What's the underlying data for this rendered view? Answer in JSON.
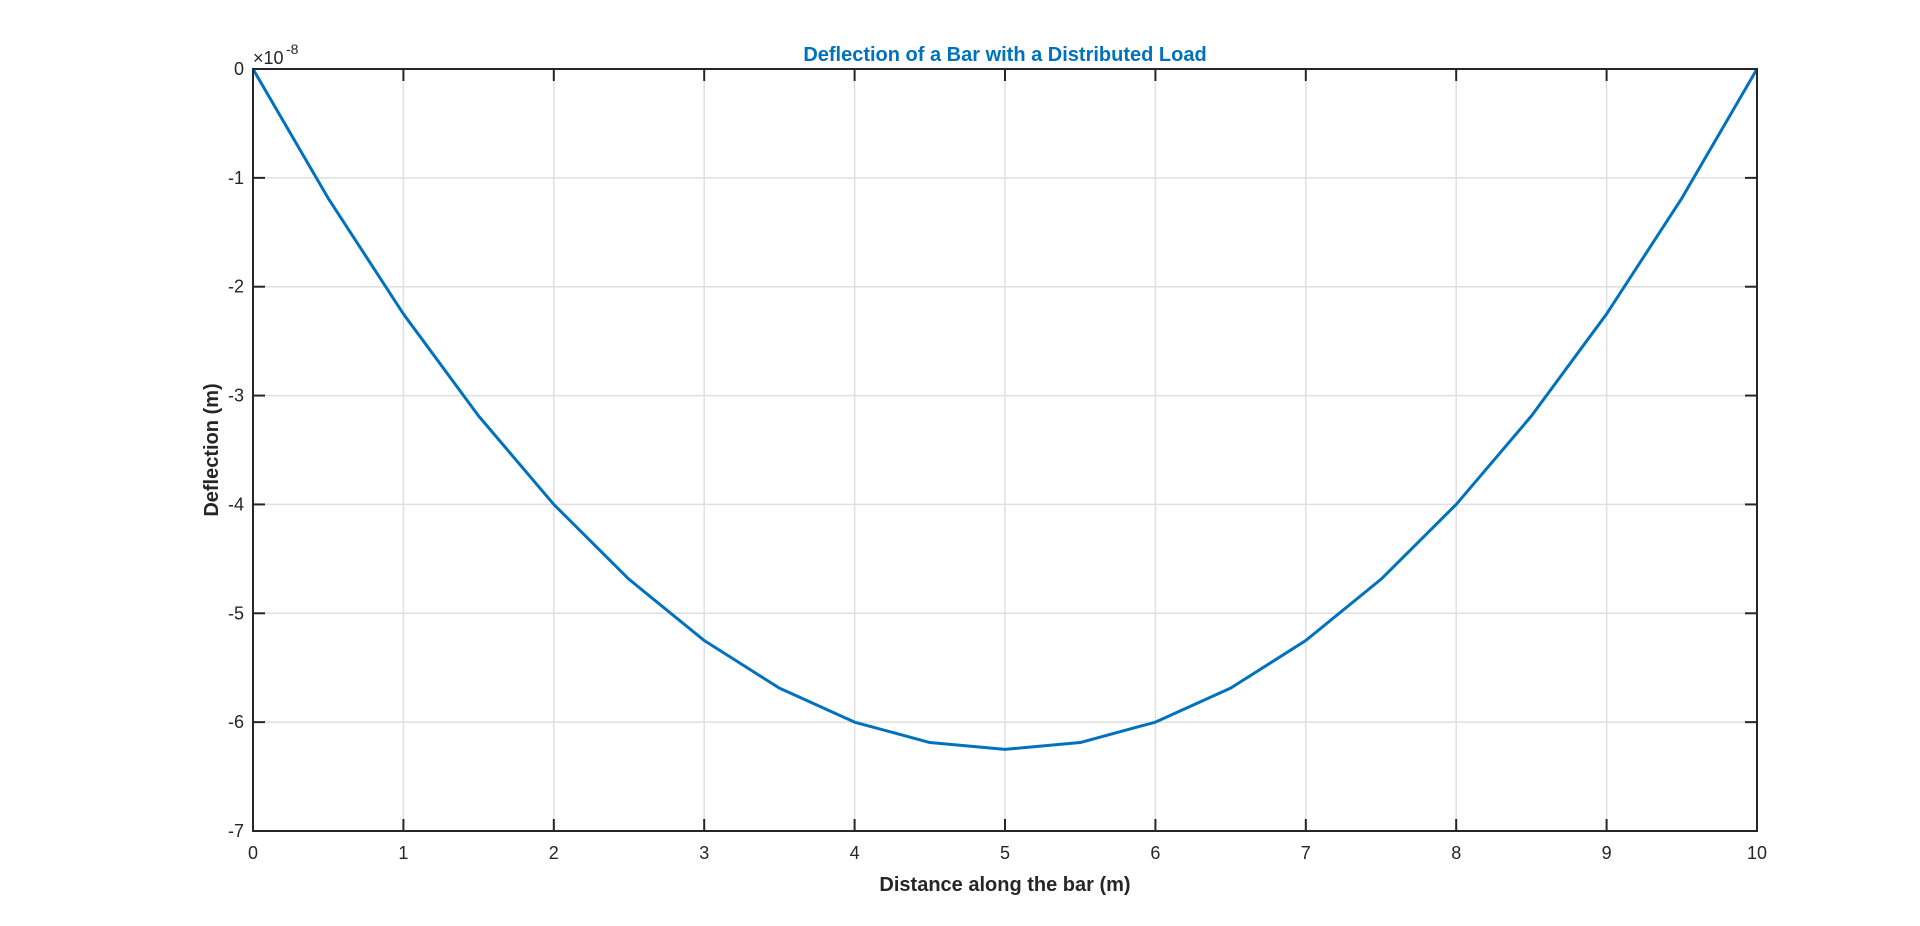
{
  "chart_data": {
    "type": "line",
    "title": "Deflection of a Bar with a Distributed Load",
    "xlabel": "Distance along the bar (m)",
    "ylabel": "Deflection (m)",
    "xlim": [
      0,
      10
    ],
    "ylim": [
      -7,
      0
    ],
    "x_ticks": [
      0,
      1,
      2,
      3,
      4,
      5,
      6,
      7,
      8,
      9,
      10
    ],
    "y_ticks": [
      0,
      -1,
      -2,
      -3,
      -4,
      -5,
      -6,
      -7
    ],
    "x_tick_labels": [
      "0",
      "1",
      "2",
      "3",
      "4",
      "5",
      "6",
      "7",
      "8",
      "9",
      "10"
    ],
    "y_tick_labels": [
      "0",
      "-1",
      "-2",
      "-3",
      "-4",
      "-5",
      "-6",
      "-7"
    ],
    "y_exponent": {
      "base": "×10",
      "power": "-8"
    },
    "grid": true,
    "series": [
      {
        "color": "#0072BD",
        "x": [
          0,
          0.5,
          1,
          1.5,
          2,
          2.5,
          3,
          3.5,
          4,
          4.5,
          5,
          5.5,
          6,
          6.5,
          7,
          7.5,
          8,
          8.5,
          9,
          9.5,
          10
        ],
        "y": [
          0,
          -1.1875,
          -2.25,
          -3.1875,
          -4,
          -4.6875,
          -5.25,
          -5.6875,
          -6,
          -6.1875,
          -6.25,
          -6.1875,
          -6,
          -5.6875,
          -5.25,
          -4.6875,
          -4,
          -3.1875,
          -2.25,
          -1.1875,
          0
        ]
      }
    ],
    "colors": {
      "title": "#0072BD",
      "line": "#0072BD",
      "axis": "#262626",
      "grid": "#dfdfdf"
    }
  }
}
